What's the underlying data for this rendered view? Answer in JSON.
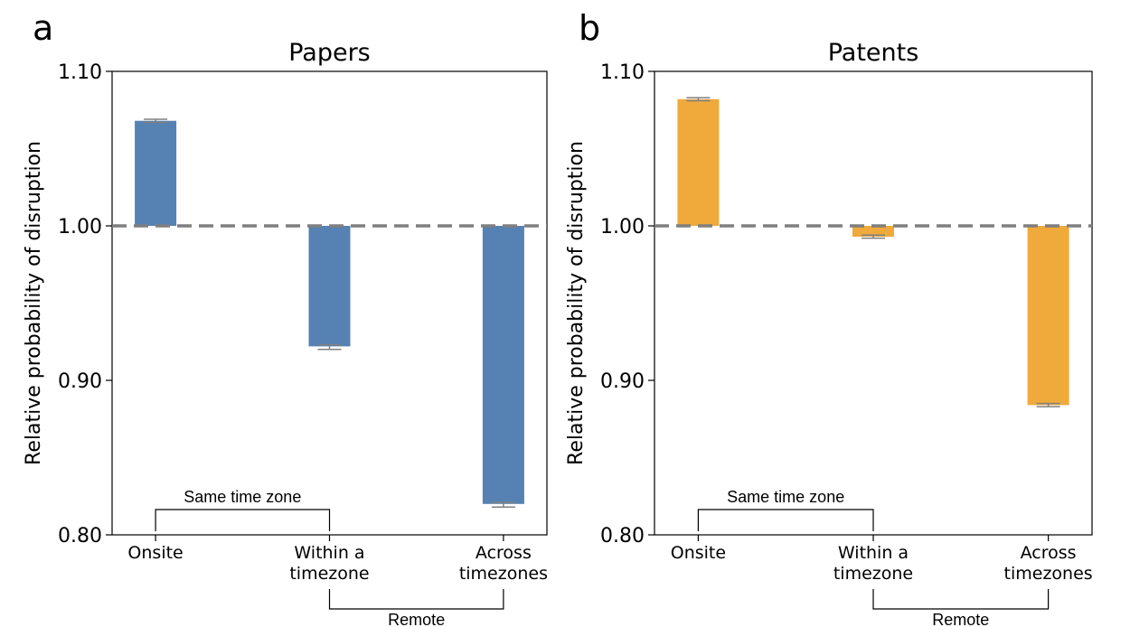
{
  "chart_data": [
    {
      "panel_letter": "a",
      "type": "bar",
      "title": "Papers",
      "ylabel": "Relative probability of disruption",
      "xlabel": "",
      "ylim": [
        0.8,
        1.1
      ],
      "yticks": [
        0.8,
        0.9,
        1.0,
        1.1
      ],
      "ytick_labels": [
        "0.80",
        "0.90",
        "1.00",
        "1.10"
      ],
      "categories": [
        [
          "Onsite"
        ],
        [
          "Within a",
          "timezone"
        ],
        [
          "Across",
          "timezones"
        ]
      ],
      "baseline": 1.0,
      "values": [
        1.068,
        0.922,
        0.82
      ],
      "error_low": [
        1.067,
        0.92,
        0.818
      ],
      "error_high": [
        1.069,
        0.923,
        0.821
      ],
      "bar_color": "#5681b3",
      "brackets": [
        {
          "label": "Same time zone",
          "from": 0,
          "to": 1,
          "position": "above-axis"
        },
        {
          "label": "Remote",
          "from": 1,
          "to": 2,
          "position": "below-labels"
        }
      ],
      "grid": false
    },
    {
      "panel_letter": "b",
      "type": "bar",
      "title": "Patents",
      "ylabel": "Relative probability of disruption",
      "xlabel": "",
      "ylim": [
        0.8,
        1.1
      ],
      "yticks": [
        0.8,
        0.9,
        1.0,
        1.1
      ],
      "ytick_labels": [
        "0.80",
        "0.90",
        "1.00",
        "1.10"
      ],
      "categories": [
        [
          "Onsite"
        ],
        [
          "Within a",
          "timezone"
        ],
        [
          "Across",
          "timezones"
        ]
      ],
      "baseline": 1.0,
      "values": [
        1.082,
        0.993,
        0.884
      ],
      "error_low": [
        1.081,
        0.992,
        0.883
      ],
      "error_high": [
        1.083,
        0.994,
        0.885
      ],
      "bar_color": "#f0a93b",
      "brackets": [
        {
          "label": "Same time zone",
          "from": 0,
          "to": 1,
          "position": "above-axis"
        },
        {
          "label": "Remote",
          "from": 1,
          "to": 2,
          "position": "below-labels"
        }
      ],
      "grid": false
    }
  ],
  "colors": {
    "baseline_dash": "#7f7f7f",
    "error_bar": "#808080",
    "axis": "#000000"
  }
}
